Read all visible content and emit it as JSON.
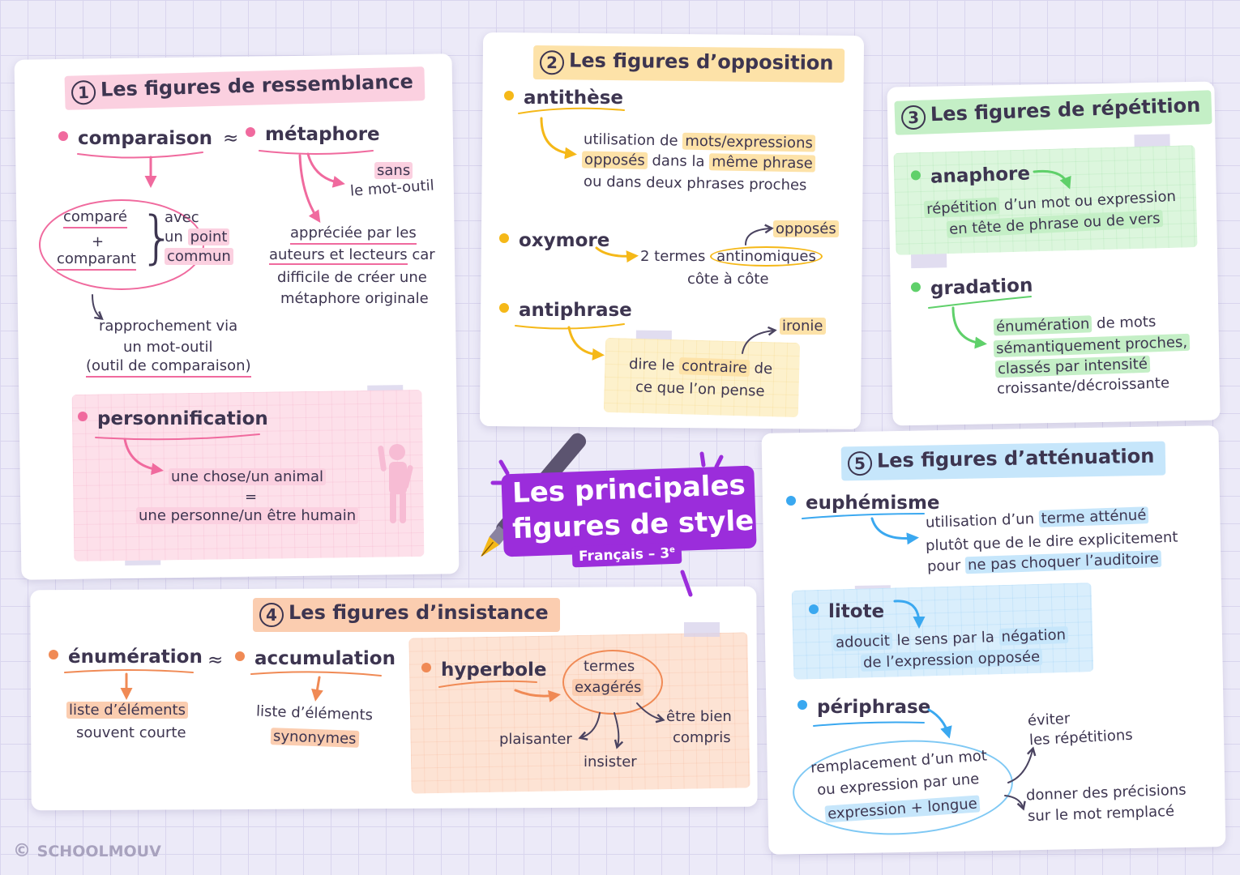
{
  "main_title": {
    "line1": "Les principales",
    "line2": "figures de style",
    "subtitle": "Français – 3",
    "subtitle_sup": "e"
  },
  "brand": {
    "copyright": "©",
    "name": "SCHOOLMOUV"
  },
  "colors": {
    "pink": "#f06a9e",
    "yellow": "#f5b818",
    "green": "#5fd06a",
    "orange": "#f08a55",
    "blue": "#3aa8f0",
    "purple": "#9b2ddb"
  },
  "ressemblance": {
    "num": "1",
    "title": "Les figures de ressemblance",
    "comparaison": "comparaison",
    "approx": "≈",
    "metaphore": "métaphore",
    "compare": "comparé",
    "plus": "+",
    "comparant": "comparant",
    "avec": "avec",
    "un": "un",
    "point": "point",
    "commun": "commun",
    "rapprochement": [
      "rapprochement via",
      "un mot-outil",
      "(outil de comparaison)"
    ],
    "sans": "sans",
    "mot_outil": "le mot-outil",
    "appreciee_l1a": "appréciée par les",
    "appreciee_l2a": "auteurs et lecteurs",
    "appreciee_l2b": " car",
    "appreciee_l3": "difficile de créer une",
    "appreciee_l4": "métaphore originale",
    "personnification": "personnification",
    "chose": "une chose/un animal",
    "egal": "=",
    "personne": "une personne/un être humain"
  },
  "opposition": {
    "num": "2",
    "title": "Les figures d’opposition",
    "antithese": "antithèse",
    "ant_a": "utilisation de ",
    "ant_b": "mots/expressions",
    "ant_c": "opposés",
    "ant_d": " dans la ",
    "ant_e": "même phrase",
    "ant_f": "ou dans deux phrases proches",
    "oxymore": "oxymore",
    "oxy_a": "2 termes ",
    "oxy_b": "antinomiques",
    "oxy_c": "côte à côte",
    "opposes": "opposés",
    "antiphrase": "antiphrase",
    "anp_a": "dire le ",
    "anp_b": "contraire",
    "anp_c": " de",
    "anp_d": "ce que l’on pense",
    "ironie": "ironie"
  },
  "repetition": {
    "num": "3",
    "title": "Les figures de répétition",
    "anaphore": "anaphore",
    "ana_a": "répétition",
    "ana_b": " d’un mot ou expression",
    "ana_c": "en tête de phrase ou de vers",
    "gradation": "gradation",
    "gra_a": "énumération",
    "gra_b": " de mots",
    "gra_c": "sémantiquement proches,",
    "gra_d": "classés par intensité",
    "gra_e": "croissante/décroissante"
  },
  "insistance": {
    "num": "4",
    "title": "Les figures d’insistance",
    "enumeration": "énumération",
    "approx": "≈",
    "accumulation": "accumulation",
    "enu_a": "liste d’éléments",
    "enu_b": "souvent courte",
    "acc_a": "liste d’éléments",
    "acc_b": "synonymes",
    "hyperbole": "hyperbole",
    "termes": "termes",
    "exageres": "exagérés",
    "plaisanter": "plaisanter",
    "insister": "insister",
    "etre_bien": "être bien",
    "compris": "compris"
  },
  "attenuation": {
    "num": "5",
    "title": "Les figures d’atténuation",
    "euphemisme": "euphémisme",
    "eup_a": "utilisation d’un ",
    "eup_b": "terme atténué",
    "eup_c": "plutôt que de le dire explicitement",
    "eup_d": "pour ",
    "eup_e": "ne pas choquer l’auditoire",
    "litote": "litote",
    "lit_a": "adoucit",
    "lit_b": " le sens par la ",
    "lit_c": "négation",
    "lit_d": "de l’expression opposée",
    "periphrase": "périphrase",
    "per_a": "remplacement d’un mot",
    "per_b": "ou expression par une",
    "per_c": "expression + longue",
    "eviter_a": "éviter",
    "eviter_b": "les répétitions",
    "donner_a": "donner des précisions",
    "donner_b": "sur le mot remplacé"
  }
}
